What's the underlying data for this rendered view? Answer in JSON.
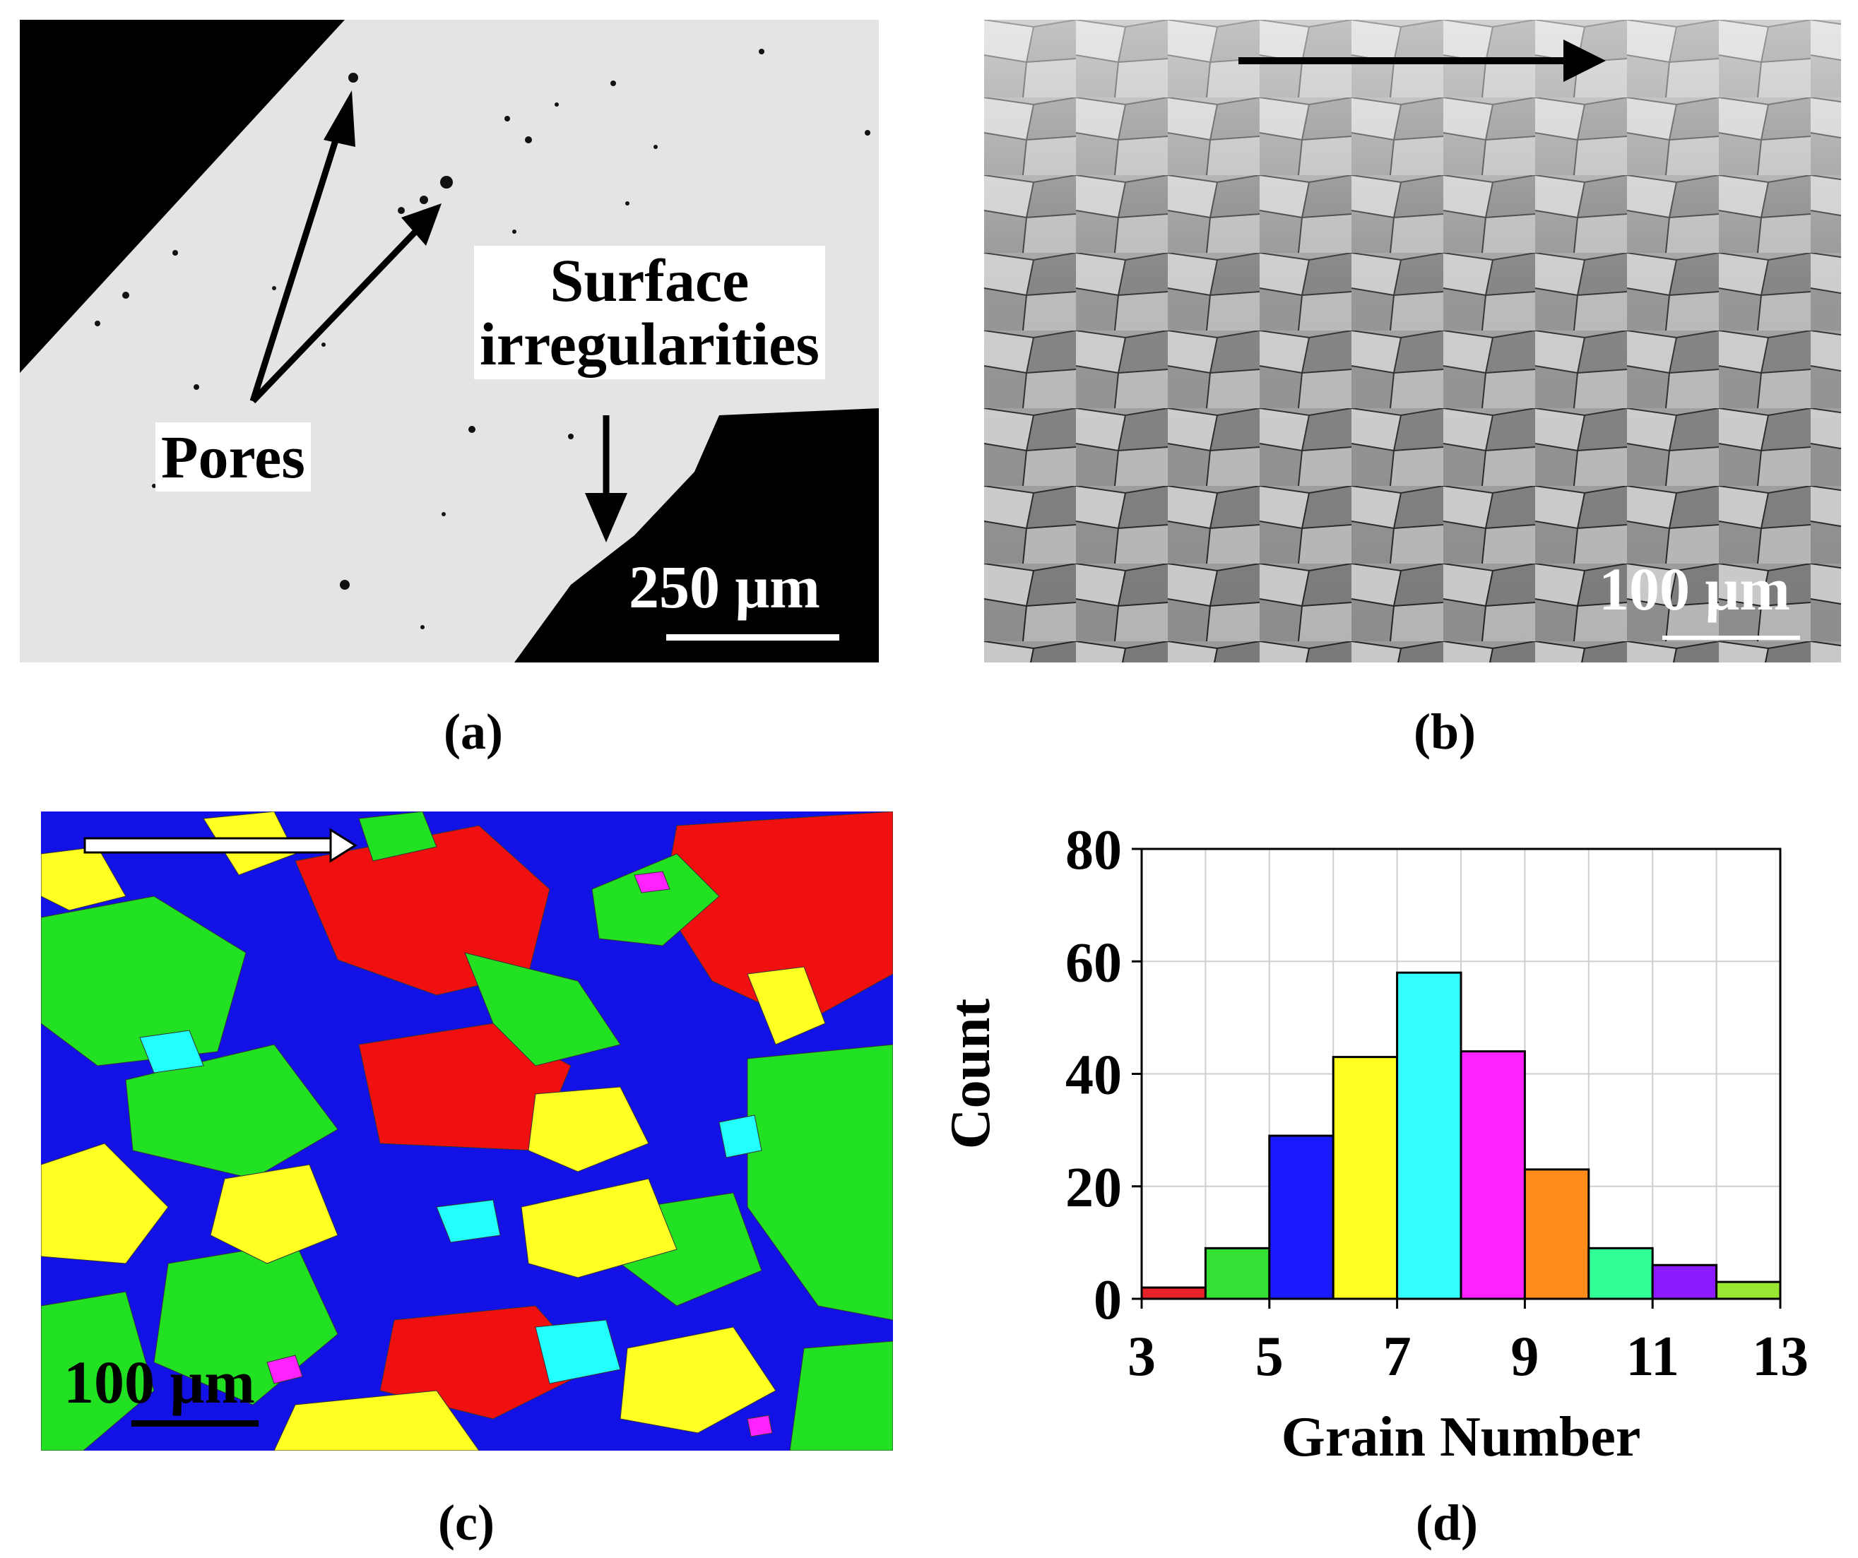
{
  "panels": {
    "a": {
      "caption": "(a)",
      "annotations": {
        "pores": "Pores",
        "surface": "Surface\nirregularities"
      },
      "scale_bar": "250 μm"
    },
    "b": {
      "caption": "(b)",
      "scale_bar": "100 μm"
    },
    "c": {
      "caption": "(c)",
      "scale_bar": "100 μm"
    },
    "d": {
      "caption": "(d)"
    }
  },
  "chart_data": {
    "type": "bar",
    "xlabel": "Grain Number",
    "ylabel": "Count",
    "xlim": [
      3,
      13
    ],
    "ylim": [
      0,
      80
    ],
    "xticks": [
      3,
      5,
      7,
      9,
      11,
      13
    ],
    "yticks": [
      0,
      20,
      40,
      60,
      80
    ],
    "grid": true,
    "bins": [
      {
        "x0": 3,
        "x1": 4,
        "value": 2,
        "color": "#e8222a"
      },
      {
        "x0": 4,
        "x1": 5,
        "value": 9,
        "color": "#33e033"
      },
      {
        "x0": 5,
        "x1": 6,
        "value": 29,
        "color": "#1a1aff"
      },
      {
        "x0": 6,
        "x1": 7,
        "value": 43,
        "color": "#ffff22"
      },
      {
        "x0": 7,
        "x1": 8,
        "value": 58,
        "color": "#33ffff"
      },
      {
        "x0": 8,
        "x1": 9,
        "value": 44,
        "color": "#ff22ff"
      },
      {
        "x0": 9,
        "x1": 10,
        "value": 23,
        "color": "#ff8c1a"
      },
      {
        "x0": 10,
        "x1": 11,
        "value": 9,
        "color": "#33ff99"
      },
      {
        "x0": 11,
        "x1": 12,
        "value": 6,
        "color": "#8c1aff"
      },
      {
        "x0": 12,
        "x1": 13,
        "value": 3,
        "color": "#99e633"
      }
    ]
  }
}
